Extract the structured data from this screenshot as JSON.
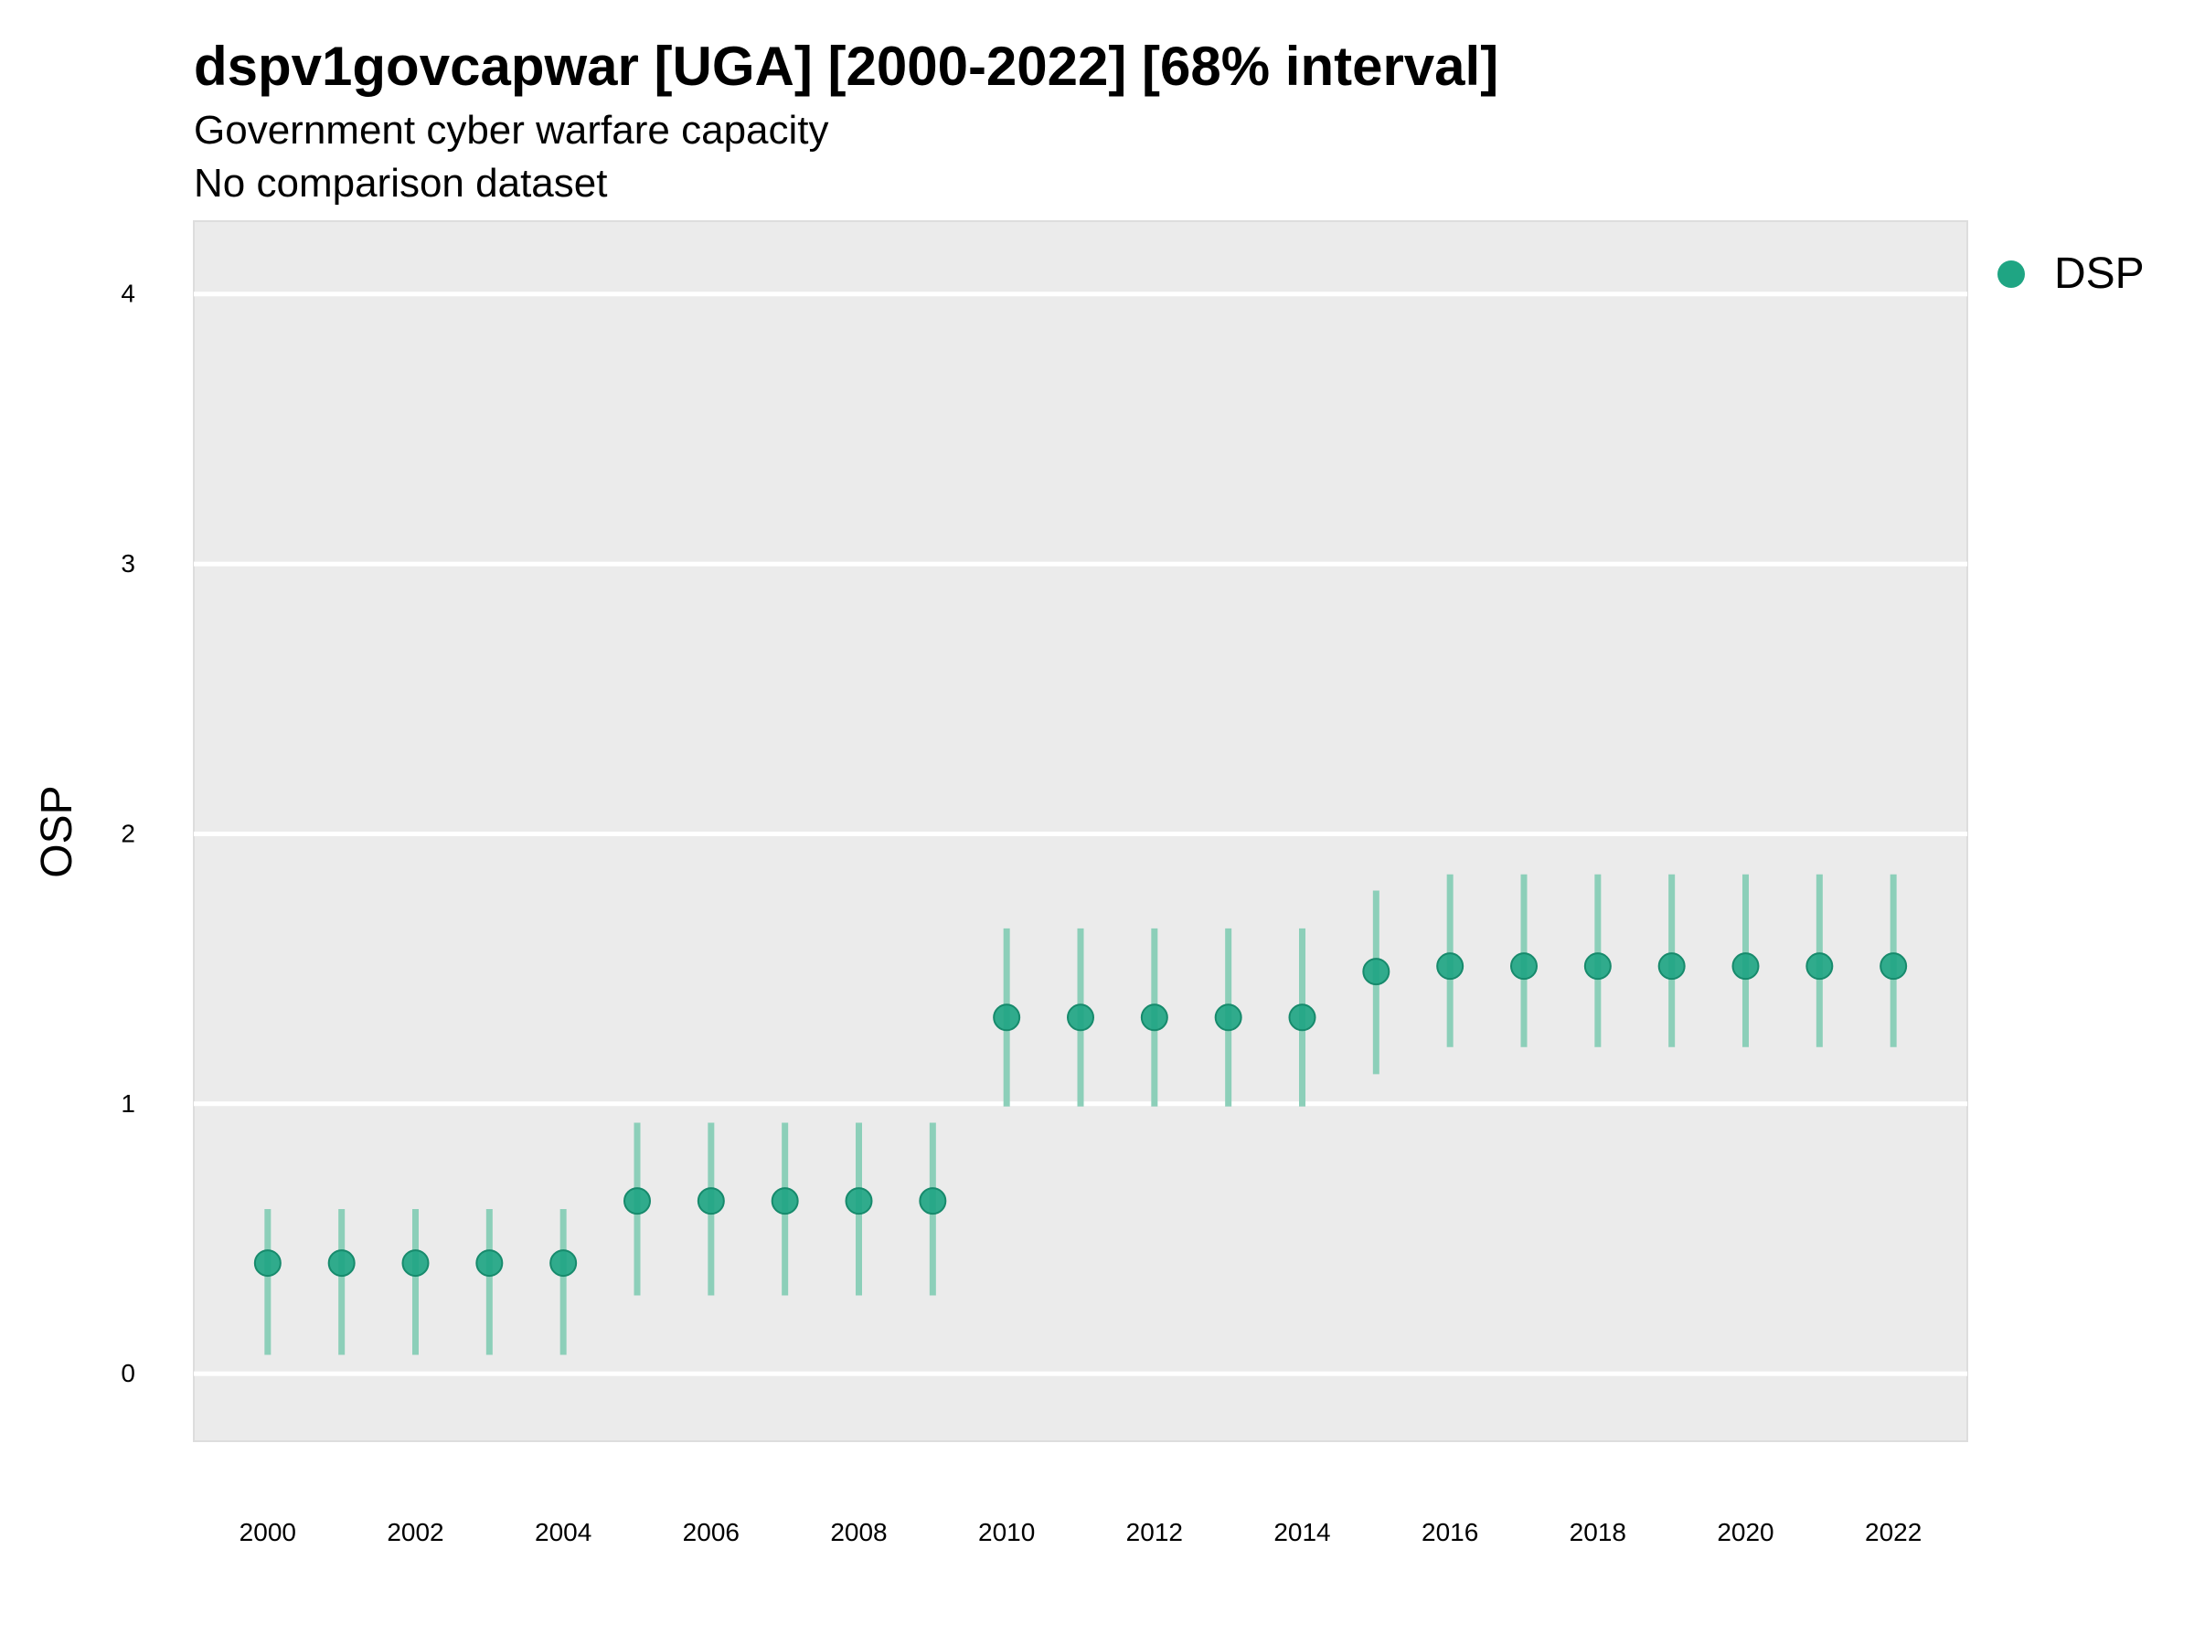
{
  "chart_data": {
    "type": "scatter",
    "title": "dspv1govcapwar [UGA] [2000-2022] [68% interval]",
    "subtitle": "Government cyber warfare capacity",
    "caption": "No comparison dataset",
    "xlabel": "",
    "ylabel": "OSP",
    "xlim": [
      1999,
      2023
    ],
    "ylim": [
      -0.25,
      4.27
    ],
    "x_ticks": [
      2000,
      2002,
      2004,
      2006,
      2008,
      2010,
      2012,
      2014,
      2016,
      2018,
      2020,
      2022
    ],
    "y_ticks": [
      0,
      1,
      2,
      3,
      4
    ],
    "grid": true,
    "legend_position": "right",
    "panel_background": "#EBEBEB",
    "grid_color": "#FFFFFF",
    "series": [
      {
        "name": "DSP",
        "color": "#1FA583",
        "interval_color": "#8CCFB9",
        "x": [
          2000,
          2001,
          2002,
          2003,
          2004,
          2005,
          2006,
          2007,
          2008,
          2009,
          2010,
          2011,
          2012,
          2013,
          2014,
          2015,
          2016,
          2017,
          2018,
          2019,
          2020,
          2021,
          2022
        ],
        "y": [
          0.41,
          0.41,
          0.41,
          0.41,
          0.41,
          0.64,
          0.64,
          0.64,
          0.64,
          0.64,
          1.32,
          1.32,
          1.32,
          1.32,
          1.32,
          1.49,
          1.51,
          1.51,
          1.51,
          1.51,
          1.51,
          1.51,
          1.51
        ],
        "lower": [
          0.07,
          0.07,
          0.07,
          0.07,
          0.07,
          0.29,
          0.29,
          0.29,
          0.29,
          0.29,
          0.99,
          0.99,
          0.99,
          0.99,
          0.99,
          1.11,
          1.21,
          1.21,
          1.21,
          1.21,
          1.21,
          1.21,
          1.21
        ],
        "upper": [
          0.61,
          0.61,
          0.61,
          0.61,
          0.61,
          0.93,
          0.93,
          0.93,
          0.93,
          0.93,
          1.65,
          1.65,
          1.65,
          1.65,
          1.65,
          1.79,
          1.85,
          1.85,
          1.85,
          1.85,
          1.85,
          1.85,
          1.85
        ]
      }
    ]
  }
}
